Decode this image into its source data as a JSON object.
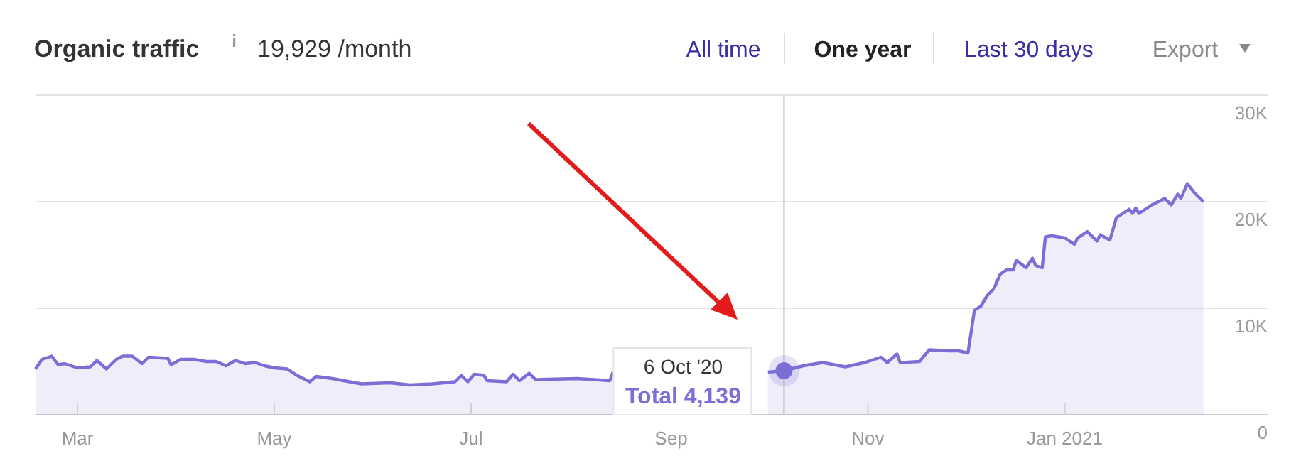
{
  "chart_data": {
    "type": "area",
    "title": "Organic traffic",
    "subtitle": "19,929 /month",
    "x": [
      "2020-02-17",
      "2020-02-19",
      "2020-02-22",
      "2020-02-24",
      "2020-02-26",
      "2020-03-01",
      "2020-03-05",
      "2020-03-07",
      "2020-03-10",
      "2020-03-13",
      "2020-03-15",
      "2020-03-18",
      "2020-03-21",
      "2020-03-23",
      "2020-03-29",
      "2020-03-30",
      "2020-04-02",
      "2020-04-06",
      "2020-04-10",
      "2020-04-13",
      "2020-04-16",
      "2020-04-19",
      "2020-04-22",
      "2020-04-25",
      "2020-04-28",
      "2020-05-01",
      "2020-05-05",
      "2020-05-08",
      "2020-05-12",
      "2020-05-14",
      "2020-05-19",
      "2020-05-28",
      "2020-06-06",
      "2020-06-12",
      "2020-06-19",
      "2020-06-26",
      "2020-06-28",
      "2020-06-30",
      "2020-07-02",
      "2020-07-05",
      "2020-07-06",
      "2020-07-12",
      "2020-07-14",
      "2020-07-16",
      "2020-07-19",
      "2020-07-21",
      "2020-08-03",
      "2020-08-13",
      "2020-08-14",
      "2020-09-10",
      "2020-10-01",
      "2020-10-06",
      "2020-10-12",
      "2020-10-18",
      "2020-10-25",
      "2020-10-31",
      "2020-11-05",
      "2020-11-07",
      "2020-11-10",
      "2020-11-11",
      "2020-11-17",
      "2020-11-20",
      "2020-11-26",
      "2020-11-29",
      "2020-12-02",
      "2020-12-04",
      "2020-12-06",
      "2020-12-08",
      "2020-12-10",
      "2020-12-12",
      "2020-12-14",
      "2020-12-16",
      "2020-12-17",
      "2020-12-20",
      "2020-12-22",
      "2020-12-23",
      "2020-12-25",
      "2020-12-26",
      "2020-12-28",
      "2021-01-01",
      "2021-01-04",
      "2021-01-05",
      "2021-01-08",
      "2021-01-11",
      "2021-01-12",
      "2021-01-15",
      "2021-01-17",
      "2021-01-21",
      "2021-01-22",
      "2021-01-23",
      "2021-01-24",
      "2021-01-28",
      "2021-02-01",
      "2021-02-03",
      "2021-02-05",
      "2021-02-06",
      "2021-02-08",
      "2021-02-10",
      "2021-02-13"
    ],
    "series": [
      {
        "color": "#7b6fd6",
        "values": [
          4300,
          5200,
          5500,
          4700,
          4800,
          4400,
          4500,
          5100,
          4300,
          5200,
          5500,
          5500,
          4800,
          5400,
          5300,
          4700,
          5200,
          5200,
          5000,
          5000,
          4600,
          5100,
          4800,
          4900,
          4600,
          4400,
          4300,
          3700,
          3100,
          3600,
          3400,
          2900,
          3000,
          2800,
          2900,
          3100,
          3700,
          3100,
          3800,
          3700,
          3200,
          3100,
          3800,
          3200,
          3900,
          3300,
          3400,
          3200,
          4000,
          null,
          4000,
          4139,
          4600,
          4900,
          4500,
          4900,
          5400,
          4900,
          5700,
          4900,
          5000,
          6100,
          6000,
          6000,
          5800,
          9800,
          10200,
          11200,
          11800,
          13200,
          13600,
          13600,
          14500,
          13800,
          14700,
          14000,
          13800,
          16700,
          16800,
          16600,
          16000,
          16600,
          17200,
          16300,
          16900,
          16400,
          18500,
          19300,
          18900,
          19400,
          18900,
          19700,
          20300,
          19700,
          20700,
          20300,
          21700,
          20900,
          20000
        ]
      }
    ],
    "xlim": [
      "2020-02-17",
      "2021-03-04"
    ],
    "xticks": [
      {
        "value": "2020-03-01",
        "label": "Mar"
      },
      {
        "value": "2020-05-01",
        "label": "May"
      },
      {
        "value": "2020-07-01",
        "label": "Jul"
      },
      {
        "value": "2020-09-01",
        "label": "Sep"
      },
      {
        "value": "2020-11-01",
        "label": "Nov"
      },
      {
        "value": "2021-01-01",
        "label": "Jan 2021"
      }
    ],
    "ylim": [
      0,
      30000
    ],
    "yticks": [
      {
        "value": 0,
        "label": "0"
      },
      {
        "value": 10000,
        "label": "10K"
      },
      {
        "value": 20000,
        "label": "20K"
      },
      {
        "value": 30000,
        "label": "30K"
      }
    ],
    "grid": "y",
    "marker": "none",
    "line_style": "solid",
    "ref_lines": [
      {
        "axis": "x",
        "value": "2020-10-06",
        "color": "#bbbbbb"
      }
    ],
    "annotations": [
      "All time",
      "One year",
      "Last 30 days",
      "Export",
      "6 Oct '20",
      "Total 4,139"
    ]
  }
}
